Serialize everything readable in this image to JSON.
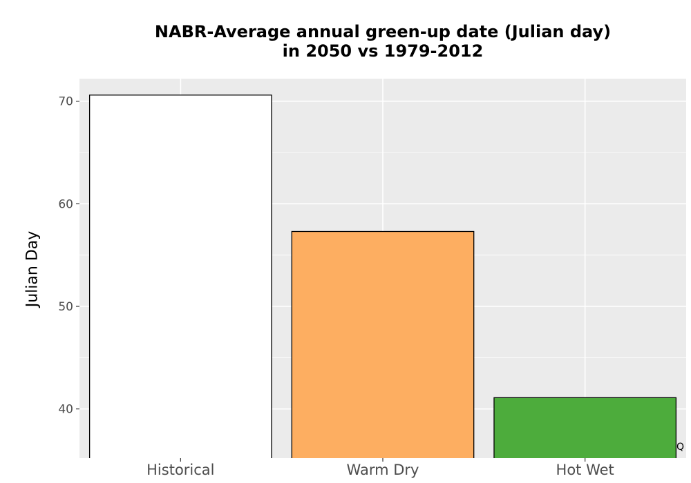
{
  "chart_data": {
    "type": "bar",
    "title_lines": [
      "NABR-Average annual green-up date (Julian day)",
      "in 2050 vs 1979-2012"
    ],
    "xlabel": "",
    "ylabel": "Julian Day",
    "categories": [
      "Historical",
      "Warm Dry",
      "Hot Wet"
    ],
    "values": [
      70.6,
      57.3,
      41.1
    ],
    "colors": [
      "#ffffff",
      "#fdae61",
      "#4dac3c"
    ],
    "bar_outline": "#000000",
    "ylim": [
      35.2,
      72.2
    ],
    "yticks": [
      40,
      50,
      60,
      70
    ],
    "ytick_labels": [
      "40",
      "50",
      "60",
      "70"
    ],
    "grid": true,
    "panel_background": "#ebebeb",
    "legend": "none"
  },
  "corner_glyph": "Q"
}
